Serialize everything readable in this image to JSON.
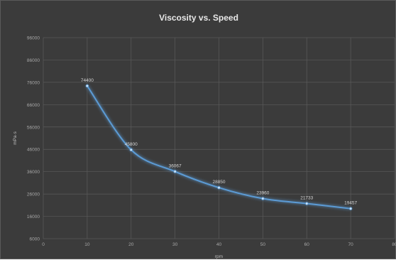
{
  "chart_data": {
    "type": "line",
    "title": "Viscosity vs. Speed",
    "xlabel": "rpm",
    "ylabel": "mPa·s",
    "xlim": [
      0,
      80
    ],
    "ylim": [
      6000,
      96000
    ],
    "x_ticks": [
      "0",
      "10",
      "20",
      "30",
      "40",
      "50",
      "60",
      "70",
      "80"
    ],
    "y_ticks": [
      "6000",
      "16000",
      "26000",
      "36000",
      "46000",
      "56000",
      "66000",
      "76000",
      "86000",
      "96000"
    ],
    "grid": true,
    "smooth": true,
    "series": [
      {
        "x": [
          10,
          20,
          30,
          40,
          50,
          60,
          70
        ],
        "values": [
          74400,
          45800,
          36067,
          28850,
          23960,
          21733,
          19457
        ],
        "labels": [
          "74400",
          "45800",
          "36067",
          "28850",
          "23960",
          "21733",
          "19457"
        ]
      }
    ],
    "colors": {
      "background": "#3b3b3b",
      "line": "#5b9bd5",
      "grid": "#5b5b5b"
    }
  }
}
